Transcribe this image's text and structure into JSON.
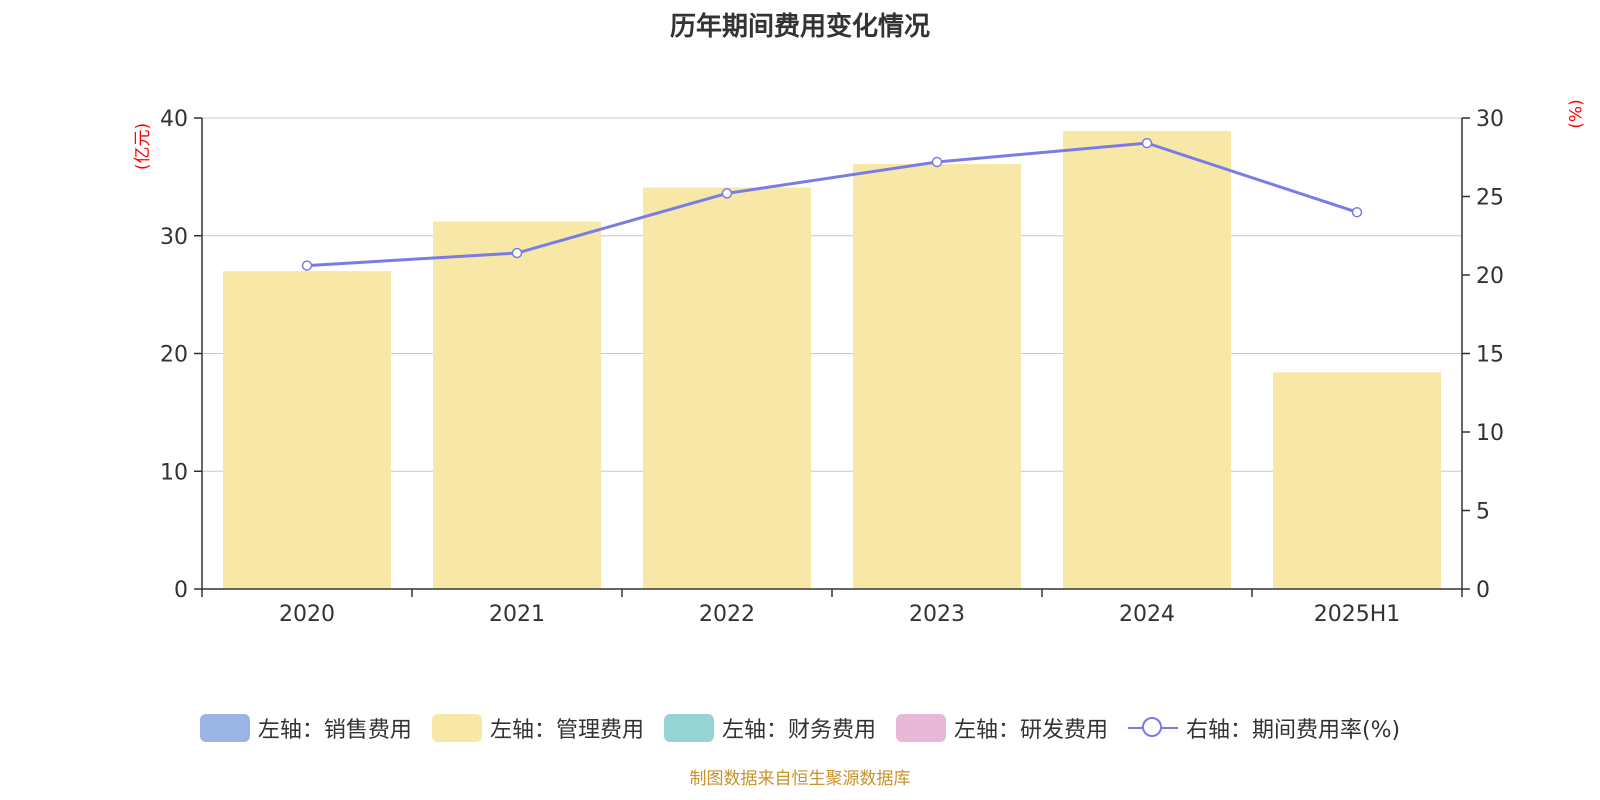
{
  "title": "历年期间费用变化情况",
  "left_unit": "(亿元)",
  "right_unit": "(%)",
  "source": "制图数据来自恒生聚源数据库",
  "legend": [
    {
      "label": "左轴：销售费用",
      "color": "#9ab5e3",
      "kind": "box"
    },
    {
      "label": "左轴：管理费用",
      "color": "#f8e8a8",
      "kind": "box"
    },
    {
      "label": "左轴：财务费用",
      "color": "#97d4d4",
      "kind": "box"
    },
    {
      "label": "左轴：研发费用",
      "color": "#e8b8d8",
      "kind": "box"
    },
    {
      "label": "右轴：期间费用率(%)",
      "color": "#7b7be6",
      "kind": "line"
    }
  ],
  "chart_data": {
    "type": "bar",
    "categories": [
      "2020",
      "2021",
      "2022",
      "2023",
      "2024",
      "2025H1"
    ],
    "series": [
      {
        "name": "左轴：管理费用",
        "axis": "left",
        "type": "bar",
        "color": "#f8e8a8",
        "values": [
          27.0,
          31.2,
          34.1,
          36.1,
          38.9,
          18.4
        ]
      },
      {
        "name": "右轴：期间费用率(%)",
        "axis": "right",
        "type": "line",
        "color": "#7b7be6",
        "values": [
          20.6,
          21.4,
          25.2,
          27.2,
          28.4,
          24.0
        ]
      }
    ],
    "y_left": {
      "min": 0,
      "max": 40,
      "ticks": [
        0,
        10,
        20,
        30,
        40
      ]
    },
    "y_right": {
      "min": 0,
      "max": 30,
      "ticks": [
        0,
        5,
        10,
        15,
        20,
        25,
        30
      ]
    },
    "grid": true,
    "legend_position": "bottom"
  }
}
